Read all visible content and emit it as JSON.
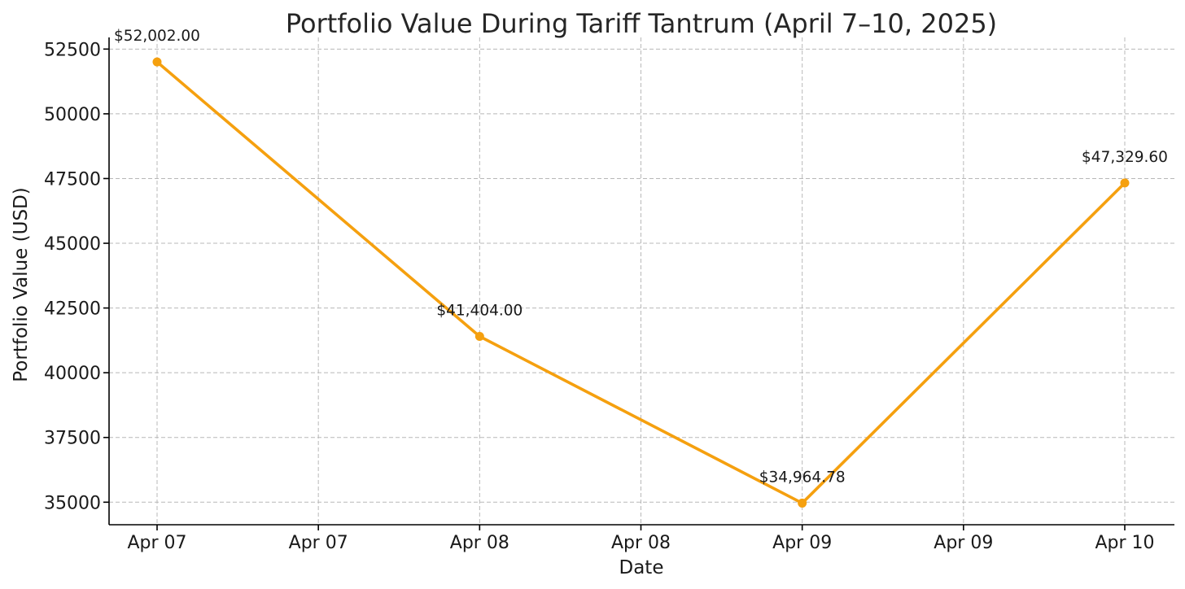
{
  "chart_data": {
    "type": "line",
    "title": "Portfolio Value During Tariff Tantrum (April 7–10, 2025)",
    "xlabel": "Date",
    "ylabel": "Portfolio Value (USD)",
    "x_ticks": [
      "Apr 07",
      "Apr 07",
      "Apr 08",
      "Apr 08",
      "Apr 09",
      "Apr 09",
      "Apr 10"
    ],
    "y_ticks": [
      "35000",
      "37500",
      "40000",
      "42500",
      "45000",
      "47500",
      "50000",
      "52500"
    ],
    "ylim": [
      34130,
      52950
    ],
    "grid": true,
    "color": "#f5a00f",
    "series": [
      {
        "x": [
          "2025-04-07",
          "2025-04-08",
          "2025-04-09",
          "2025-04-10"
        ],
        "values": [
          52002.0,
          41404.0,
          34964.78,
          47329.6
        ],
        "labels": [
          "$52,002.00",
          "$41,404.00",
          "$34,964.78",
          "$47,329.60"
        ]
      }
    ]
  }
}
